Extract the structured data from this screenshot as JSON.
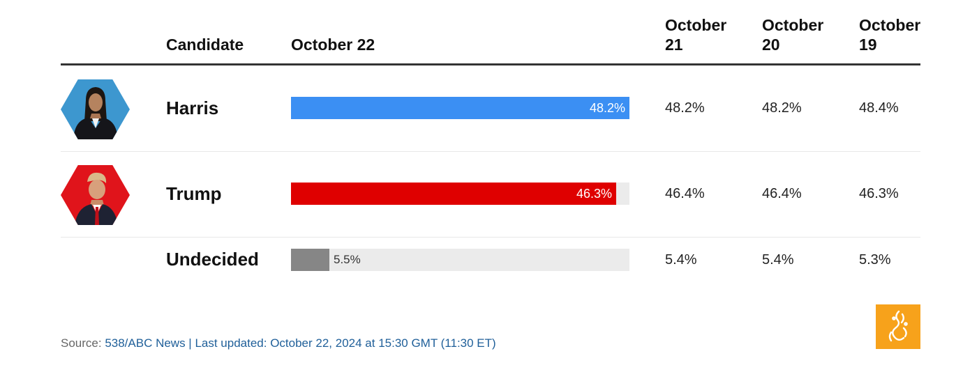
{
  "columns": {
    "candidate": "Candidate",
    "current": "October 22",
    "d1": "October 21",
    "d2": "October 20",
    "d3": "October 19"
  },
  "rows": [
    {
      "name": "Harris",
      "current_label": "48.2%",
      "d1": "48.2%",
      "d2": "48.2%",
      "d3": "48.4%"
    },
    {
      "name": "Trump",
      "current_label": "46.3%",
      "d1": "46.4%",
      "d2": "46.4%",
      "d3": "46.3%"
    },
    {
      "name": "Undecided",
      "current_label": "5.5%",
      "d1": "5.4%",
      "d2": "5.4%",
      "d3": "5.3%"
    }
  ],
  "footer": {
    "source_label": "Source: ",
    "source_text": "538/ABC News | Last updated: October 22, 2024 at 15:30 GMT (11:30 ET)"
  },
  "colors": {
    "harris": "#3b8ff3",
    "trump": "#df0000",
    "undecided": "#868686",
    "track": "#ebebeb",
    "harris_avatar_bg": "#3d97cf",
    "trump_avatar_bg": "#e0141b",
    "logo_bg": "#f7a21b"
  },
  "icons": {
    "harris_avatar": "harris-portrait-icon",
    "trump_avatar": "trump-portrait-icon",
    "logo": "al-jazeera-logo-icon"
  },
  "chart_data": {
    "type": "bar",
    "categories": [
      "Harris",
      "Trump",
      "Undecided"
    ],
    "values": [
      48.2,
      46.3,
      5.5
    ],
    "value_labels": [
      "48.2%",
      "46.3%",
      "5.5%"
    ],
    "xlim": [
      0,
      48.2
    ],
    "title": "",
    "xlabel": "October 22",
    "ylabel": "Candidate",
    "grid": false,
    "table": {
      "columns": [
        "October 21",
        "October 20",
        "October 19"
      ],
      "values": [
        [
          48.2,
          48.2,
          48.4
        ],
        [
          46.4,
          46.4,
          46.3
        ],
        [
          5.4,
          5.4,
          5.3
        ]
      ]
    }
  }
}
